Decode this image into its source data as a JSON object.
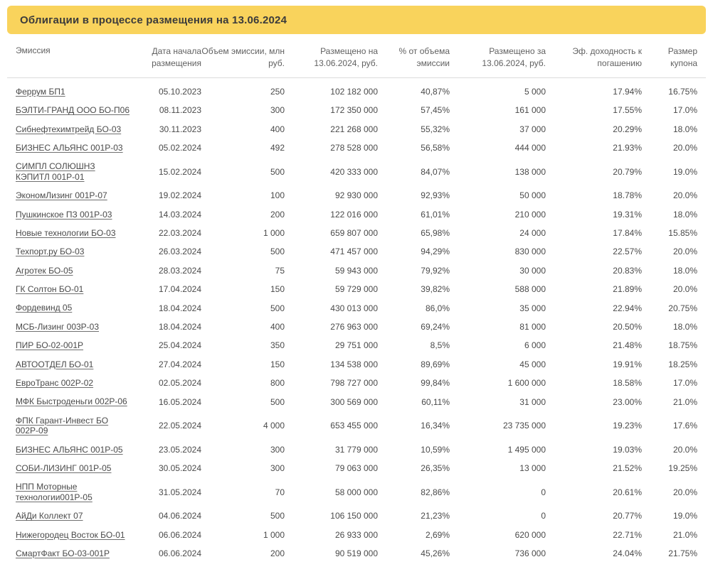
{
  "title": "Облигации в процессе размещения на 13.06.2024",
  "colors": {
    "banner_bg": "#F9D35C",
    "title_text": "#3B3B3B",
    "header_text": "#616161",
    "body_text": "#4A4A4A",
    "divider": "#DCDCDC"
  },
  "table": {
    "headers": [
      "Эмиссия",
      "Дата начала размещения",
      "Объем эмиссии, млн руб.",
      "Размещено на 13.06.2024, руб.",
      "% от объема эмиссии",
      "Размещено за 13.06.2024, руб.",
      "Эф. доходность к погашению",
      "Размер купона"
    ],
    "rows": [
      {
        "name": "Феррум БП1",
        "date": "05.10.2023",
        "volume": "250",
        "placed": "102 182 000",
        "pct": "40,87%",
        "daily": "5 000",
        "yield": "17.94%",
        "coupon": "16.75%"
      },
      {
        "name": "БЭЛТИ-ГРАНД ООО БО-П06",
        "date": "08.11.2023",
        "volume": "300",
        "placed": "172 350 000",
        "pct": "57,45%",
        "daily": "161 000",
        "yield": "17.55%",
        "coupon": "17.0%"
      },
      {
        "name": "Сибнефтехимтрейд БО-03",
        "date": "30.11.2023",
        "volume": "400",
        "placed": "221 268 000",
        "pct": "55,32%",
        "daily": "37 000",
        "yield": "20.29%",
        "coupon": "18.0%"
      },
      {
        "name": "БИЗНЕС АЛЬЯНС 001Р-03",
        "date": "05.02.2024",
        "volume": "492",
        "placed": "278 528 000",
        "pct": "56,58%",
        "daily": "444 000",
        "yield": "21.93%",
        "coupon": "20.0%"
      },
      {
        "name": "СИМПЛ СОЛЮШНЗ КЭПИТЛ 001Р-01",
        "date": "15.02.2024",
        "volume": "500",
        "placed": "420 333 000",
        "pct": "84,07%",
        "daily": "138 000",
        "yield": "20.79%",
        "coupon": "19.0%"
      },
      {
        "name": "ЭкономЛизинг 001Р-07",
        "date": "19.02.2024",
        "volume": "100",
        "placed": "92 930 000",
        "pct": "92,93%",
        "daily": "50 000",
        "yield": "18.78%",
        "coupon": "20.0%"
      },
      {
        "name": "Пушкинское ПЗ 001Р-03",
        "date": "14.03.2024",
        "volume": "200",
        "placed": "122 016 000",
        "pct": "61,01%",
        "daily": "210 000",
        "yield": "19.31%",
        "coupon": "18.0%"
      },
      {
        "name": "Новые технологии БО-03",
        "date": "22.03.2024",
        "volume": "1 000",
        "placed": "659 807 000",
        "pct": "65,98%",
        "daily": "24 000",
        "yield": "17.84%",
        "coupon": "15.85%"
      },
      {
        "name": "Техпорт.ру БО-03",
        "date": "26.03.2024",
        "volume": "500",
        "placed": "471 457 000",
        "pct": "94,29%",
        "daily": "830 000",
        "yield": "22.57%",
        "coupon": "20.0%"
      },
      {
        "name": "Агротек БО-05",
        "date": "28.03.2024",
        "volume": "75",
        "placed": "59 943 000",
        "pct": "79,92%",
        "daily": "30 000",
        "yield": "20.83%",
        "coupon": "18.0%"
      },
      {
        "name": "ГК Солтон БО-01",
        "date": "17.04.2024",
        "volume": "150",
        "placed": "59 729 000",
        "pct": "39,82%",
        "daily": "588 000",
        "yield": "21.89%",
        "coupon": "20.0%"
      },
      {
        "name": "Фордевинд 05",
        "date": "18.04.2024",
        "volume": "500",
        "placed": "430 013 000",
        "pct": "86,0%",
        "daily": "35 000",
        "yield": "22.94%",
        "coupon": "20.75%"
      },
      {
        "name": "МСБ-Лизинг 003Р-03",
        "date": "18.04.2024",
        "volume": "400",
        "placed": "276 963 000",
        "pct": "69,24%",
        "daily": "81 000",
        "yield": "20.50%",
        "coupon": "18.0%"
      },
      {
        "name": "ПИР БО-02-001Р",
        "date": "25.04.2024",
        "volume": "350",
        "placed": "29 751 000",
        "pct": "8,5%",
        "daily": "6 000",
        "yield": "21.48%",
        "coupon": "18.75%"
      },
      {
        "name": "АВТООТДЕЛ БО-01",
        "date": "27.04.2024",
        "volume": "150",
        "placed": "134 538 000",
        "pct": "89,69%",
        "daily": "45 000",
        "yield": "19.91%",
        "coupon": "18.25%"
      },
      {
        "name": "ЕвроТранс 002Р-02",
        "date": "02.05.2024",
        "volume": "800",
        "placed": "798 727 000",
        "pct": "99,84%",
        "daily": "1 600 000",
        "yield": "18.58%",
        "coupon": "17.0%"
      },
      {
        "name": "МФК Быстроденьги 002Р-06",
        "date": "16.05.2024",
        "volume": "500",
        "placed": "300 569 000",
        "pct": "60,11%",
        "daily": "31 000",
        "yield": "23.00%",
        "coupon": "21.0%"
      },
      {
        "name": "ФПК Гарант-Инвест БО 002Р-09",
        "date": "22.05.2024",
        "volume": "4 000",
        "placed": "653 455 000",
        "pct": "16,34%",
        "daily": "23 735 000",
        "yield": "19.23%",
        "coupon": "17.6%"
      },
      {
        "name": "БИЗНЕС АЛЬЯНС 001Р-05",
        "date": "23.05.2024",
        "volume": "300",
        "placed": "31 779 000",
        "pct": "10,59%",
        "daily": "1 495 000",
        "yield": "19.03%",
        "coupon": "20.0%"
      },
      {
        "name": "СОБИ-ЛИЗИНГ 001Р-05",
        "date": "30.05.2024",
        "volume": "300",
        "placed": "79 063 000",
        "pct": "26,35%",
        "daily": "13 000",
        "yield": "21.52%",
        "coupon": "19.25%"
      },
      {
        "name": "НПП Моторные технологии001Р-05",
        "date": "31.05.2024",
        "volume": "70",
        "placed": "58 000 000",
        "pct": "82,86%",
        "daily": "0",
        "yield": "20.61%",
        "coupon": "20.0%"
      },
      {
        "name": "АйДи Коллект 07",
        "date": "04.06.2024",
        "volume": "500",
        "placed": "106 150 000",
        "pct": "21,23%",
        "daily": "0",
        "yield": "20.77%",
        "coupon": "19.0%"
      },
      {
        "name": "Нижегородец Восток БО-01",
        "date": "06.06.2024",
        "volume": "1 000",
        "placed": "26 933 000",
        "pct": "2,69%",
        "daily": "620 000",
        "yield": "22.71%",
        "coupon": "21.0%"
      },
      {
        "name": "СмартФакт БО-03-001Р",
        "date": "06.06.2024",
        "volume": "200",
        "placed": "90 519 000",
        "pct": "45,26%",
        "daily": "736 000",
        "yield": "24.04%",
        "coupon": "21.75%"
      }
    ]
  }
}
